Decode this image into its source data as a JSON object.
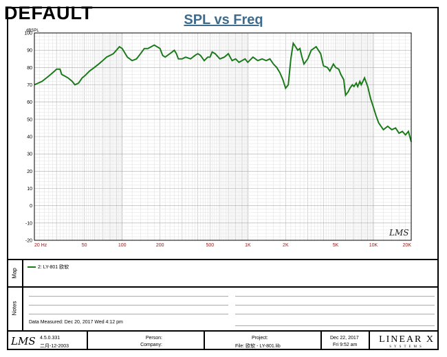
{
  "page": {
    "corner_label": "DEFAULT"
  },
  "chart_data": {
    "type": "line",
    "title": "SPL vs Freq",
    "ylabel": "dBSPL",
    "xlabel": "",
    "x_scale": "log",
    "xlim": [
      20,
      20000
    ],
    "ylim": [
      -20,
      100
    ],
    "y_ticks": [
      100,
      90,
      80,
      70,
      60,
      50,
      40,
      30,
      20,
      10,
      0,
      -10,
      -20
    ],
    "x_tick_labels": [
      {
        "v": 20,
        "t": "20 Hz"
      },
      {
        "v": 50,
        "t": "50"
      },
      {
        "v": 100,
        "t": "100"
      },
      {
        "v": 200,
        "t": "200"
      },
      {
        "v": 500,
        "t": "500"
      },
      {
        "v": 1000,
        "t": "1K"
      },
      {
        "v": 2000,
        "t": "2K"
      },
      {
        "v": 5000,
        "t": "5K"
      },
      {
        "v": 10000,
        "t": "10K"
      },
      {
        "v": 20000,
        "t": "20K"
      }
    ],
    "grid": true,
    "watermark": "LMS",
    "line_color": "#1a7a1a",
    "series": [
      {
        "name": "2: LY-801 欧软",
        "x": [
          20,
          23,
          25,
          27,
          29,
          30,
          32,
          33,
          35,
          37,
          40,
          42,
          45,
          48,
          50,
          55,
          60,
          65,
          70,
          75,
          80,
          85,
          90,
          95,
          100,
          110,
          120,
          130,
          140,
          150,
          160,
          170,
          180,
          200,
          210,
          220,
          250,
          260,
          270,
          280,
          300,
          320,
          350,
          380,
          400,
          420,
          450,
          480,
          500,
          520,
          550,
          600,
          650,
          700,
          750,
          800,
          850,
          900,
          950,
          1000,
          1100,
          1200,
          1300,
          1400,
          1500,
          1600,
          1700,
          1800,
          1900,
          2000,
          2100,
          2200,
          2300,
          2400,
          2500,
          2600,
          2700,
          2800,
          3000,
          3200,
          3500,
          3800,
          4000,
          4300,
          4500,
          4800,
          5000,
          5300,
          5500,
          5800,
          6000,
          6300,
          6500,
          6800,
          7000,
          7300,
          7500,
          7800,
          8000,
          8500,
          9000,
          9500,
          10000,
          10500,
          11000,
          12000,
          13000,
          14000,
          15000,
          16000,
          17000,
          18000,
          19000,
          20000
        ],
        "y": [
          70,
          72,
          74,
          76,
          78,
          79,
          79,
          76,
          75,
          74,
          72,
          70,
          71,
          74,
          75,
          78,
          80,
          82,
          84,
          86,
          87,
          88,
          90,
          92,
          91,
          86,
          84,
          85,
          88,
          91,
          91,
          92,
          93,
          91,
          87,
          86,
          89,
          90,
          88,
          85,
          85,
          86,
          85,
          87,
          88,
          87,
          84,
          86,
          86,
          89,
          88,
          85,
          86,
          88,
          84,
          85,
          83,
          84,
          85,
          83,
          86,
          84,
          85,
          84,
          85,
          82,
          80,
          77,
          73,
          68,
          70,
          85,
          94,
          92,
          90,
          91,
          86,
          82,
          85,
          90,
          92,
          88,
          81,
          80,
          78,
          82,
          80,
          79,
          76,
          73,
          64,
          66,
          68,
          70,
          69,
          71,
          69,
          72,
          70,
          74,
          69,
          62,
          57,
          52,
          48,
          44,
          46,
          44,
          45,
          42,
          43,
          41,
          43,
          37
        ]
      }
    ]
  },
  "map": {
    "tab": "Map",
    "legend_label": "2: LY-801 欧软"
  },
  "notes": {
    "tab": "Notes",
    "measured": "Data Measured: Dec 20, 2017  Wed  4:12 pm"
  },
  "footer": {
    "logo": "LMS",
    "version": "4.5.0.331",
    "version_date": "二月-12-2003",
    "person_label": "Person:",
    "company_label": "Company:",
    "project_label": "Project:",
    "file_label": "File: 欧软 - LY-801.lib",
    "date": "Dec 22, 2017",
    "time": "Fri  9:52 am",
    "brand": "LINEAR X",
    "brand_sub": "SYSTEMS"
  }
}
